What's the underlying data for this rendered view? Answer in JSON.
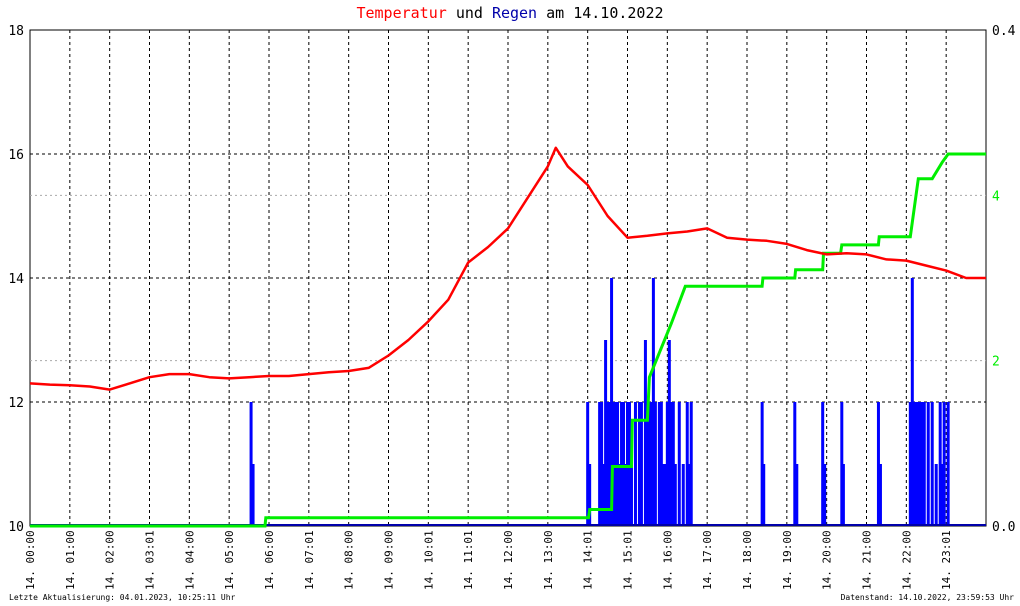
{
  "title": {
    "part1": "Temperatur",
    "part2": "und",
    "part3": "Regen",
    "part4": "am",
    "part5": "14.10.2022"
  },
  "footer": {
    "left": "Letzte Aktualisierung: 04.01.2023, 10:25:11 Uhr",
    "right": "Datenstand: 14.10.2022, 23:59:53 Uhr"
  },
  "colors": {
    "temperature": "#ff0000",
    "rain_bars": "#0000ff",
    "rain_cumulative": "#00ee00",
    "grid": "#000000"
  },
  "chart_data": {
    "type": "line",
    "x_ticks": [
      "14. 00:00",
      "14. 01:00",
      "14. 02:00",
      "14. 03:01",
      "14. 04:00",
      "14. 05:00",
      "14. 06:00",
      "14. 07:01",
      "14. 08:00",
      "14. 09:00",
      "14. 10:01",
      "14. 11:01",
      "14. 12:00",
      "14. 13:00",
      "14. 14:01",
      "14. 15:01",
      "14. 16:00",
      "14. 17:00",
      "14. 18:00",
      "14. 19:00",
      "14. 20:00",
      "14. 21:00",
      "14. 22:00",
      "14. 23:01"
    ],
    "y_left": {
      "range": [
        10,
        18
      ],
      "ticks": [
        "10",
        "12",
        "14",
        "16",
        "18"
      ]
    },
    "y_right_inner": {
      "range": [
        0,
        6
      ],
      "ticks": [
        "2",
        "4"
      ]
    },
    "y_right_outer": {
      "range": [
        0,
        0.4
      ],
      "ticks": [
        "0.0",
        "0.4"
      ]
    },
    "grid": true,
    "temperature": {
      "x": [
        0,
        0.5,
        1,
        1.5,
        2,
        2.5,
        3,
        3.5,
        4,
        4.5,
        5,
        5.5,
        6,
        6.5,
        7,
        7.5,
        8,
        8.5,
        9,
        9.5,
        10,
        10.5,
        11,
        11.5,
        12,
        12.5,
        13,
        13.2,
        13.5,
        14,
        14.5,
        15,
        15.5,
        16,
        16.5,
        17,
        17.5,
        18,
        18.5,
        19,
        19.5,
        20,
        20.5,
        21,
        21.5,
        22,
        22.5,
        23,
        23.5,
        24
      ],
      "y": [
        12.3,
        12.28,
        12.27,
        12.25,
        12.2,
        12.3,
        12.4,
        12.45,
        12.45,
        12.4,
        12.38,
        12.4,
        12.42,
        12.42,
        12.45,
        12.48,
        12.5,
        12.55,
        12.75,
        13.0,
        13.3,
        13.65,
        14.25,
        14.5,
        14.8,
        15.3,
        15.8,
        16.1,
        15.8,
        15.5,
        15.0,
        14.65,
        14.68,
        14.72,
        14.75,
        14.8,
        14.65,
        14.62,
        14.6,
        14.55,
        14.45,
        14.38,
        14.4,
        14.38,
        14.3,
        14.28,
        14.2,
        14.12,
        14.0,
        14.0
      ]
    },
    "rain_cumulative": {
      "x": [
        0,
        5.9,
        5.92,
        14.02,
        14.05,
        14.6,
        14.62,
        15.1,
        15.12,
        15.5,
        15.55,
        16.1,
        16.45,
        16.75,
        16.8,
        17.6,
        18.38,
        18.4,
        19.2,
        19.22,
        19.9,
        19.92,
        20.35,
        20.38,
        21.3,
        21.32,
        22.1,
        22.3,
        22.55,
        22.65,
        22.9,
        23.05,
        23.1,
        24
      ],
      "y": [
        0,
        0,
        0.1,
        0.1,
        0.2,
        0.2,
        0.72,
        0.72,
        1.28,
        1.28,
        1.8,
        2.45,
        2.9,
        2.9,
        2.9,
        2.9,
        2.9,
        3.0,
        3.0,
        3.1,
        3.1,
        3.3,
        3.3,
        3.4,
        3.4,
        3.5,
        3.5,
        4.2,
        4.2,
        4.2,
        4.4,
        4.5,
        4.5,
        4.5
      ]
    },
    "rain_bars": {
      "x": [
        5.55,
        5.6,
        14.0,
        14.05,
        14.3,
        14.35,
        14.4,
        14.45,
        14.5,
        14.55,
        14.6,
        14.65,
        14.7,
        14.75,
        14.8,
        14.85,
        14.9,
        14.95,
        15.0,
        15.05,
        15.1,
        15.2,
        15.3,
        15.35,
        15.45,
        15.5,
        15.55,
        15.6,
        15.65,
        15.7,
        15.8,
        15.85,
        15.9,
        15.95,
        16.0,
        16.05,
        16.1,
        16.15,
        16.2,
        16.3,
        16.4,
        16.5,
        16.55,
        16.6,
        18.38,
        18.42,
        19.2,
        19.25,
        19.9,
        19.95,
        20.38,
        20.42,
        21.3,
        21.35,
        22.1,
        22.15,
        22.2,
        22.25,
        22.3,
        22.35,
        22.4,
        22.45,
        22.55,
        22.65,
        22.75,
        22.85,
        22.9,
        22.95,
        23.05
      ],
      "y": [
        0.1,
        0.05,
        0.1,
        0.05,
        0.1,
        0.1,
        0.05,
        0.15,
        0.1,
        0.1,
        0.2,
        0.1,
        0.1,
        0.1,
        0.05,
        0.1,
        0.1,
        0.05,
        0.1,
        0.1,
        0.05,
        0.1,
        0.1,
        0.1,
        0.15,
        0.1,
        0.1,
        0.1,
        0.2,
        0.1,
        0.1,
        0.1,
        0.05,
        0.05,
        0.1,
        0.15,
        0.1,
        0.1,
        0.05,
        0.1,
        0.05,
        0.1,
        0.05,
        0.1,
        0.1,
        0.05,
        0.1,
        0.05,
        0.1,
        0.05,
        0.1,
        0.05,
        0.1,
        0.05,
        0.1,
        0.2,
        0.1,
        0.1,
        0.1,
        0.1,
        0.1,
        0.1,
        0.1,
        0.1,
        0.05,
        0.1,
        0.05,
        0.1,
        0.1
      ]
    }
  }
}
